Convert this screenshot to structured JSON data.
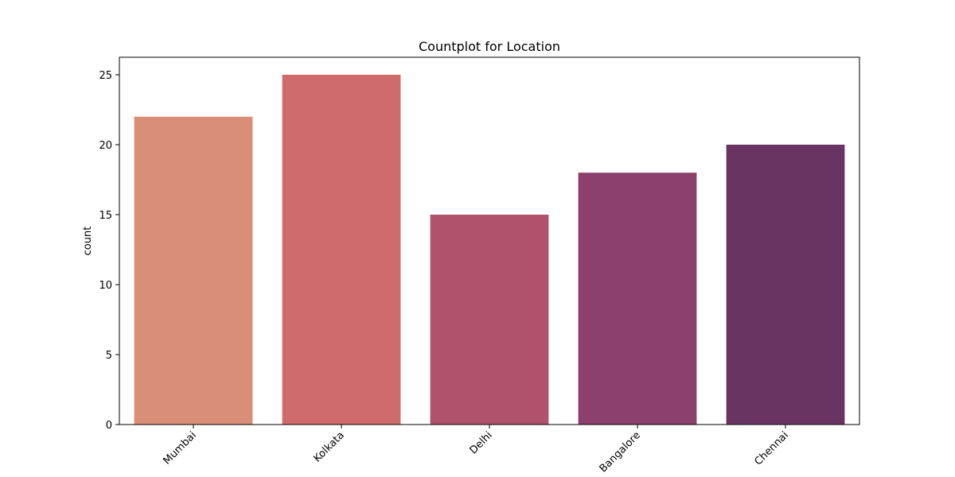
{
  "chart_data": {
    "type": "bar",
    "title": "Countplot for Location",
    "xlabel": "",
    "ylabel": "count",
    "categories": [
      "Mumbai",
      "Kolkata",
      "Delhi",
      "Bangalore",
      "Chennai"
    ],
    "values": [
      22,
      25,
      15,
      18,
      20
    ],
    "colors": [
      "#d98e78",
      "#cf6b6a",
      "#b0526c",
      "#8b416b",
      "#6a3462"
    ],
    "ylim": [
      0,
      26.25
    ],
    "yticks": [
      0,
      5,
      10,
      15,
      20,
      25
    ],
    "ytick_labels": [
      "0",
      "5",
      "10",
      "15",
      "20",
      "25"
    ],
    "xtick_rotation": -45,
    "grid": false,
    "legend": "none"
  }
}
